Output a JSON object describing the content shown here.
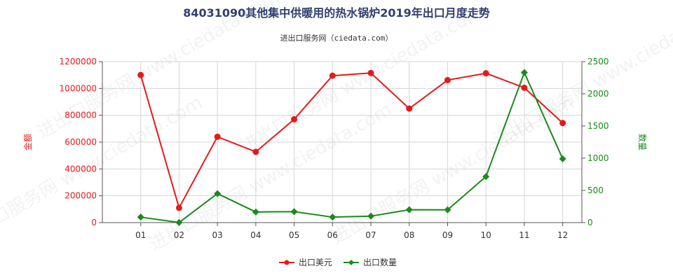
{
  "chart_data": {
    "type": "line",
    "title": "84031090其他集中供暖用的热水锅炉2019年出口月度走势",
    "subtitle": "进出口服务网（ciedata.com）",
    "categories": [
      "01",
      "02",
      "03",
      "04",
      "05",
      "06",
      "07",
      "08",
      "09",
      "10",
      "11",
      "12"
    ],
    "ylabel_left": "金额",
    "ylabel_right": "数量",
    "ylim_left": [
      0,
      1200000
    ],
    "ylim_right": [
      0,
      2500
    ],
    "yticks_left": [
      "0",
      "200000",
      "400000",
      "600000",
      "800000",
      "1000000",
      "1200000"
    ],
    "yticks_right": [
      "0",
      "500",
      "1000",
      "1500",
      "2000",
      "2500"
    ],
    "grid": true,
    "legend_position": "bottom-center",
    "series": [
      {
        "name": "出口美元",
        "axis": "left",
        "color": "#e31a1c",
        "marker": "circle",
        "values": [
          1100000,
          110000,
          640000,
          527000,
          770000,
          1095000,
          1115000,
          850000,
          1062000,
          1113000,
          1005000,
          742000
        ]
      },
      {
        "name": "出口数量",
        "axis": "right",
        "color": "#1a8a1a",
        "marker": "diamond",
        "values": [
          85,
          2,
          450,
          165,
          170,
          85,
          100,
          200,
          198,
          715,
          2330,
          990
        ]
      }
    ]
  }
}
